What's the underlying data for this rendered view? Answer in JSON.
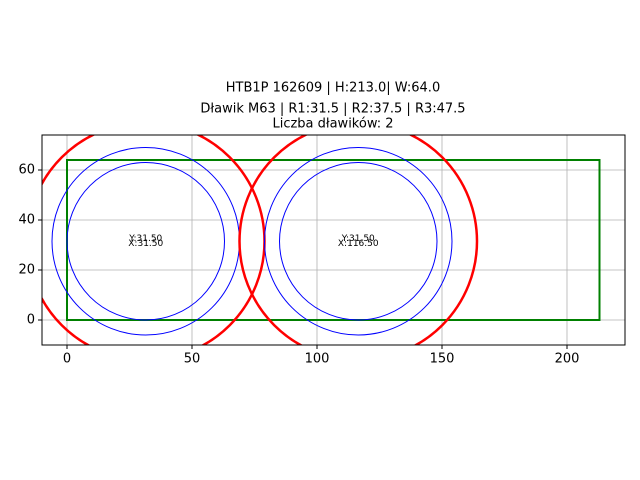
{
  "chart_data": {
    "type": "circles",
    "title": [
      "HTB1P 162609 | H:213.0| W:64.0",
      "Dławik M63 | R1:31.5 | R2:37.5 | R3:47.5",
      "Liczba dławików: 2"
    ],
    "centers": {
      "x": [
        31.5,
        116.5
      ],
      "y": [
        31.5,
        31.5
      ]
    },
    "radii": [
      {
        "value": 31.5,
        "color": "#0000ff"
      },
      {
        "value": 37.5,
        "color": "#0000ff"
      },
      {
        "value": 47.5,
        "color": "#ff0000"
      }
    ],
    "rect": {
      "x": 0,
      "y": 0,
      "width": 213,
      "height": 64,
      "color": "#008000"
    },
    "annotations": [
      {
        "x": 31.5,
        "y": 31.5,
        "texts": [
          "Y:31.50",
          "X:31.50"
        ]
      },
      {
        "x": 116.5,
        "y": 31.5,
        "texts": [
          "Y:31.50",
          "X:116.50"
        ]
      }
    ],
    "xlim": [
      -10,
      223.2
    ],
    "ylim": [
      -10,
      74
    ],
    "xticks": [
      0,
      50,
      100,
      150,
      200
    ],
    "yticks": [
      0,
      20,
      40,
      60
    ],
    "grid": true
  }
}
